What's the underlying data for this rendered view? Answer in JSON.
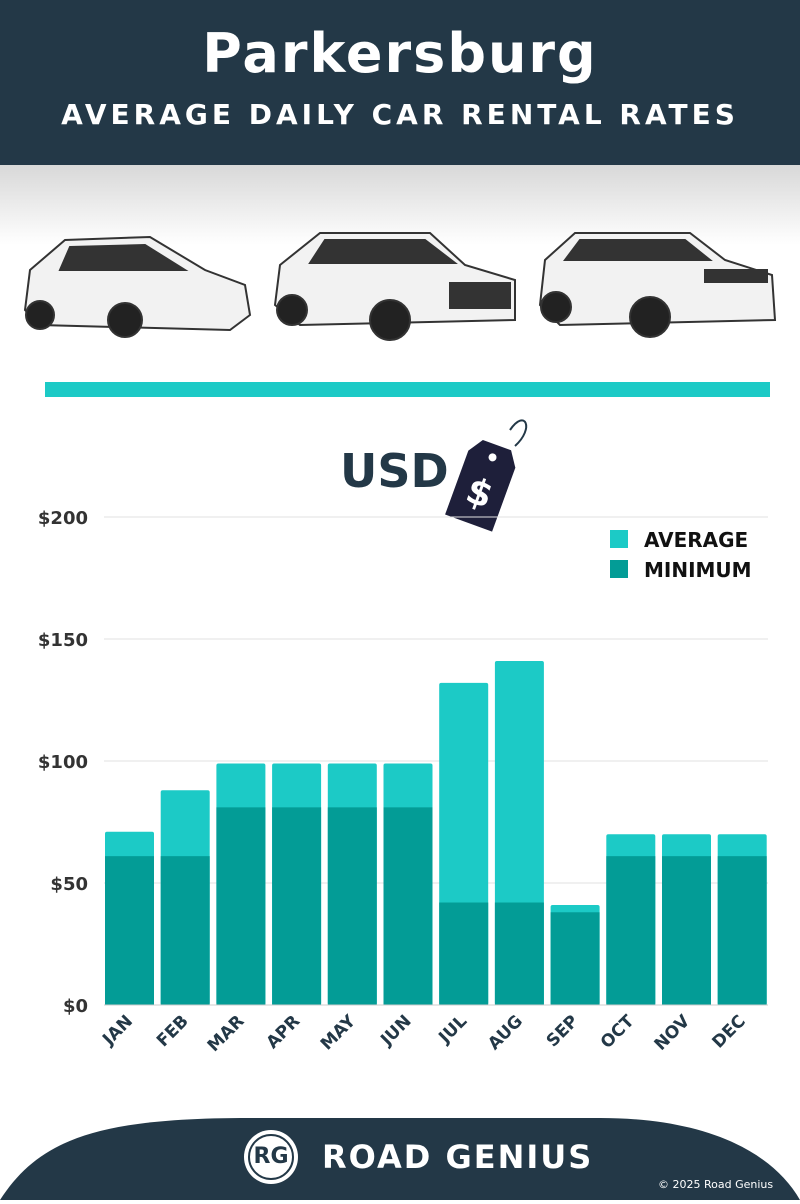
{
  "header": {
    "title": "Parkersburg",
    "subtitle": "AVERAGE DAILY CAR RENTAL RATES"
  },
  "currency_label": "USD",
  "price_tag_symbol": "$",
  "footer": {
    "logo_text": "RG",
    "brand": "ROAD GENIUS",
    "copyright": "© 2025 Road Genius"
  },
  "colors": {
    "header": "#233847",
    "average": "#1ccac6",
    "minimum": "#039c96"
  },
  "chart_data": {
    "type": "bar",
    "stacking": "overlay",
    "categories": [
      "JAN",
      "FEB",
      "MAR",
      "APR",
      "MAY",
      "JUN",
      "JUL",
      "AUG",
      "SEP",
      "OCT",
      "NOV",
      "DEC"
    ],
    "series": [
      {
        "name": "AVERAGE",
        "values": [
          71,
          88,
          99,
          99,
          99,
          99,
          132,
          141,
          41,
          70,
          70,
          70
        ]
      },
      {
        "name": "MINIMUM",
        "values": [
          61,
          61,
          81,
          81,
          81,
          81,
          42,
          42,
          38,
          61,
          61,
          61
        ]
      }
    ],
    "yticks": [
      "$0",
      "$50",
      "$100",
      "$150",
      "$200"
    ],
    "ytick_values": [
      0,
      50,
      100,
      150,
      200
    ],
    "ylim": [
      0,
      200
    ],
    "grid": true,
    "legend": "top-right"
  }
}
